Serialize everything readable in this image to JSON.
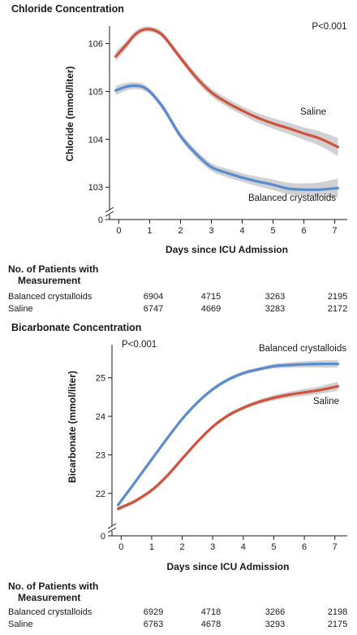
{
  "chart_data": [
    {
      "type": "line",
      "title": "Chloride Concentration",
      "xlabel": "Days since ICU Admission",
      "ylabel": "Chloride (mmol/liter)",
      "annotation": "P<0.001",
      "xlim": [
        -0.3,
        7.3
      ],
      "ylim": [
        102.8,
        106.4
      ],
      "xticks": [
        0,
        1,
        2,
        3,
        4,
        5,
        6,
        7
      ],
      "yticks": [
        103,
        104,
        105,
        106
      ],
      "axis_break": true,
      "axis_zero_label": "0",
      "series": [
        {
          "name": "Saline",
          "color": "#d0533d",
          "x": [
            -0.1,
            0.25,
            0.5,
            0.75,
            1.0,
            1.25,
            1.5,
            2.0,
            2.5,
            3.0,
            3.5,
            4.0,
            4.5,
            5.0,
            5.5,
            6.0,
            6.5,
            7.1
          ],
          "y": [
            105.73,
            105.98,
            106.17,
            106.28,
            106.3,
            106.25,
            106.12,
            105.7,
            105.3,
            104.98,
            104.77,
            104.6,
            104.45,
            104.33,
            104.23,
            104.12,
            104.02,
            103.84
          ],
          "ci": [
            0.1,
            0.08,
            0.07,
            0.06,
            0.06,
            0.06,
            0.07,
            0.07,
            0.08,
            0.08,
            0.09,
            0.09,
            0.1,
            0.11,
            0.12,
            0.13,
            0.15,
            0.19
          ]
        },
        {
          "name": "Balanced crystalloids",
          "color": "#5b8ccf",
          "x": [
            -0.1,
            0.25,
            0.5,
            0.75,
            1.0,
            1.25,
            1.5,
            2.0,
            2.5,
            3.0,
            3.5,
            4.0,
            4.5,
            5.0,
            5.5,
            6.0,
            6.5,
            7.1
          ],
          "y": [
            105.02,
            105.1,
            105.12,
            105.1,
            105.0,
            104.82,
            104.6,
            104.07,
            103.7,
            103.42,
            103.3,
            103.2,
            103.12,
            103.05,
            102.97,
            102.95,
            102.95,
            102.98
          ],
          "ci": [
            0.1,
            0.08,
            0.07,
            0.07,
            0.06,
            0.06,
            0.07,
            0.07,
            0.08,
            0.08,
            0.09,
            0.09,
            0.1,
            0.11,
            0.12,
            0.13,
            0.15,
            0.2
          ]
        }
      ],
      "patients_header": [
        "No. of Patients with",
        "Measurement"
      ],
      "patients": [
        {
          "label": "Balanced crystalloids",
          "counts": [
            {
              "day": 0,
              "n": "6904"
            },
            {
              "day": 2,
              "n": "4715"
            },
            {
              "day": 4,
              "n": "3263"
            },
            {
              "day": 7,
              "n": "2195"
            }
          ]
        },
        {
          "label": "Saline",
          "counts": [
            {
              "day": 0,
              "n": "6747"
            },
            {
              "day": 2,
              "n": "4669"
            },
            {
              "day": 4,
              "n": "3283"
            },
            {
              "day": 7,
              "n": "2172"
            }
          ]
        }
      ]
    },
    {
      "type": "line",
      "title": "Bicarbonate Concentration",
      "xlabel": "Days since ICU Admission",
      "ylabel": "Bicarbonate (mmol/liter)",
      "annotation": "P<0.001",
      "xlim": [
        -0.3,
        7.3
      ],
      "ylim": [
        21.3,
        25.9
      ],
      "xticks": [
        0,
        1,
        2,
        3,
        4,
        5,
        6,
        7
      ],
      "yticks": [
        22,
        23,
        24,
        25
      ],
      "axis_break": true,
      "axis_zero_label": "0",
      "series": [
        {
          "name": "Balanced crystalloids",
          "color": "#5b8ccf",
          "x": [
            -0.1,
            0.25,
            0.5,
            1.0,
            1.5,
            2.0,
            2.5,
            3.0,
            3.5,
            4.0,
            4.5,
            5.0,
            5.5,
            6.0,
            6.5,
            7.1
          ],
          "y": [
            21.7,
            22.07,
            22.34,
            22.88,
            23.42,
            23.93,
            24.36,
            24.7,
            24.95,
            25.12,
            25.22,
            25.3,
            25.33,
            25.35,
            25.36,
            25.36
          ],
          "ci": [
            0.06,
            0.05,
            0.05,
            0.05,
            0.05,
            0.05,
            0.05,
            0.05,
            0.05,
            0.05,
            0.05,
            0.06,
            0.07,
            0.08,
            0.09,
            0.1
          ]
        },
        {
          "name": "Saline",
          "color": "#d0533d",
          "x": [
            -0.1,
            0.25,
            0.5,
            1.0,
            1.5,
            2.0,
            2.5,
            3.0,
            3.5,
            4.0,
            4.5,
            5.0,
            5.5,
            6.0,
            6.5,
            7.1
          ],
          "y": [
            21.6,
            21.72,
            21.82,
            22.08,
            22.45,
            22.9,
            23.34,
            23.73,
            24.02,
            24.22,
            24.37,
            24.48,
            24.56,
            24.62,
            24.68,
            24.78
          ],
          "ci": [
            0.06,
            0.05,
            0.05,
            0.05,
            0.05,
            0.05,
            0.05,
            0.05,
            0.05,
            0.05,
            0.06,
            0.07,
            0.08,
            0.09,
            0.1,
            0.12
          ]
        }
      ],
      "patients_header": [
        "No. of Patients with",
        "Measurement"
      ],
      "patients": [
        {
          "label": "Balanced crystalloids",
          "counts": [
            {
              "day": 0,
              "n": "6929"
            },
            {
              "day": 2,
              "n": "4718"
            },
            {
              "day": 4,
              "n": "3266"
            },
            {
              "day": 7,
              "n": "2198"
            }
          ]
        },
        {
          "label": "Saline",
          "counts": [
            {
              "day": 0,
              "n": "6763"
            },
            {
              "day": 2,
              "n": "4678"
            },
            {
              "day": 4,
              "n": "3293"
            },
            {
              "day": 7,
              "n": "2175"
            }
          ]
        }
      ]
    }
  ]
}
